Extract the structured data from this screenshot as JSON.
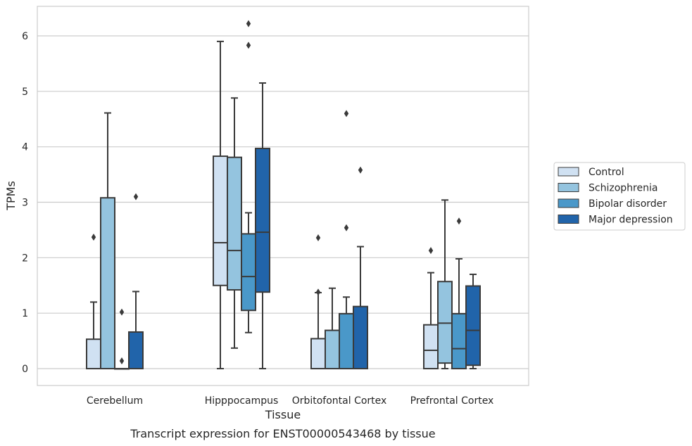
{
  "chart_data": {
    "type": "box",
    "title": "",
    "caption": "Transcript expression for ENST00000543468 by tissue",
    "xlabel": "Tissue",
    "ylabel": "TPMs",
    "ylim": [
      -0.3,
      6.5
    ],
    "yticks": [
      0,
      1,
      2,
      3,
      4,
      5,
      6
    ],
    "grid": "horizontal",
    "legend_position": "right",
    "categories": [
      "Cerebellum",
      "Hipppocampus",
      "Orbitofontal Cortex",
      "Prefrontal Cortex"
    ],
    "series": [
      {
        "name": "Control",
        "color": "#d0e1f2",
        "boxes": [
          {
            "whislo": 0,
            "q1": 0,
            "med": 0,
            "q3": 0.53,
            "whishi": 1.2,
            "fliers": [
              2.37
            ]
          },
          {
            "whislo": 0,
            "q1": 1.5,
            "med": 2.27,
            "q3": 3.83,
            "whishi": 5.9,
            "fliers": []
          },
          {
            "whislo": 0,
            "q1": 0,
            "med": 0,
            "q3": 0.54,
            "whishi": 1.37,
            "fliers": [
              2.36,
              1.38
            ]
          },
          {
            "whislo": 0,
            "q1": 0,
            "med": 0.33,
            "q3": 0.79,
            "whishi": 1.73,
            "fliers": [
              2.13
            ]
          }
        ]
      },
      {
        "name": "Schizophrenia",
        "color": "#94c4df",
        "boxes": [
          {
            "whislo": 0,
            "q1": 0,
            "med": 0,
            "q3": 3.08,
            "whishi": 4.61,
            "fliers": []
          },
          {
            "whislo": 0.37,
            "q1": 1.42,
            "med": 2.13,
            "q3": 3.81,
            "whishi": 4.88,
            "fliers": []
          },
          {
            "whislo": 0,
            "q1": 0,
            "med": 0,
            "q3": 0.69,
            "whishi": 1.45,
            "fliers": []
          },
          {
            "whislo": 0,
            "q1": 0.1,
            "med": 0.82,
            "q3": 1.57,
            "whishi": 3.04,
            "fliers": []
          }
        ]
      },
      {
        "name": "Bipolar disorder",
        "color": "#4a98c9",
        "boxes": [
          {
            "whislo": 0,
            "q1": 0,
            "med": 0,
            "q3": 0,
            "whishi": 0,
            "fliers": [
              1.02,
              0.14
            ]
          },
          {
            "whislo": 0.65,
            "q1": 1.05,
            "med": 1.66,
            "q3": 2.43,
            "whishi": 2.81,
            "fliers": [
              6.22,
              5.83
            ]
          },
          {
            "whislo": 0,
            "q1": 0,
            "med": 0,
            "q3": 0.99,
            "whishi": 1.29,
            "fliers": [
              4.6,
              2.54
            ]
          },
          {
            "whislo": 0,
            "q1": 0,
            "med": 0.36,
            "q3": 0.99,
            "whishi": 1.98,
            "fliers": [
              2.66
            ]
          }
        ]
      },
      {
        "name": "Major depression",
        "color": "#2164aa",
        "boxes": [
          {
            "whislo": 0,
            "q1": 0,
            "med": 0,
            "q3": 0.66,
            "whishi": 1.39,
            "fliers": [
              3.1
            ]
          },
          {
            "whislo": 0,
            "q1": 1.38,
            "med": 2.46,
            "q3": 3.97,
            "whishi": 5.15,
            "fliers": []
          },
          {
            "whislo": 0,
            "q1": 0,
            "med": 0,
            "q3": 1.12,
            "whishi": 2.2,
            "fliers": [
              3.58
            ]
          },
          {
            "whislo": 0,
            "q1": 0.06,
            "med": 0.69,
            "q3": 1.49,
            "whishi": 1.7,
            "fliers": []
          }
        ]
      }
    ]
  }
}
